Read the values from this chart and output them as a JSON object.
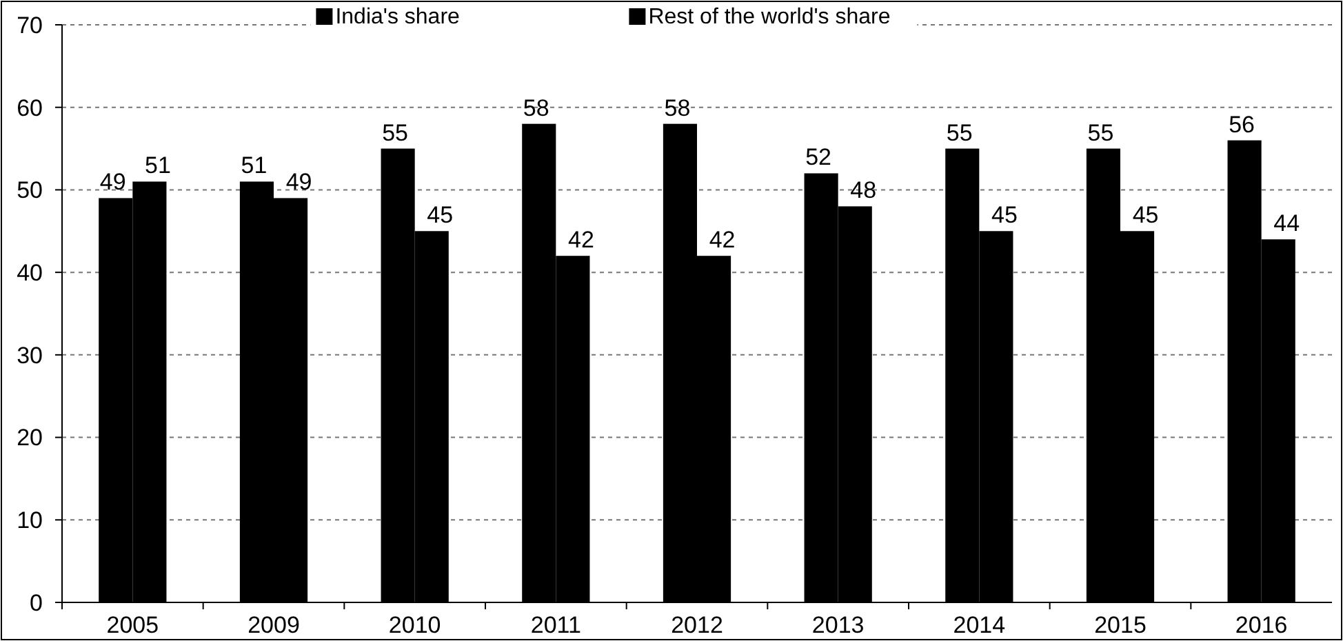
{
  "chart_data": {
    "type": "bar",
    "categories": [
      "2005",
      "2009",
      "2010",
      "2011",
      "2012",
      "2013",
      "2014",
      "2015",
      "2016"
    ],
    "series": [
      {
        "name": "India's share",
        "color": "#000000",
        "values": [
          49,
          51,
          55,
          58,
          58,
          52,
          55,
          55,
          56
        ]
      },
      {
        "name": "Rest of the world's share",
        "color": "#000000",
        "values": [
          51,
          49,
          45,
          42,
          42,
          48,
          45,
          45,
          44
        ]
      }
    ],
    "ylim": [
      0,
      70
    ],
    "yticks": [
      0,
      10,
      20,
      30,
      40,
      50,
      60,
      70
    ],
    "grid": "y",
    "legend": "top",
    "data_labels": true
  }
}
